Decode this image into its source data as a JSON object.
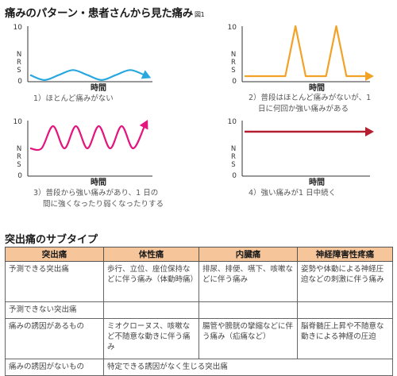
{
  "title": "痛みのパターン・患者さんから見た痛み",
  "figure_ref": "図1",
  "charts": [
    {
      "ymax_label": "10",
      "ymin_label": "0",
      "ylabel": "NRS",
      "xlabel": "時間",
      "line_color": "#29a7df",
      "caption_lines": [
        "1）ほとんど痛みがない"
      ]
    },
    {
      "ymax_label": "10",
      "ymin_label": "0",
      "ylabel": "NRS",
      "xlabel": "時間",
      "line_color": "#f2a227",
      "caption_lines": [
        "2）普段はほとんど痛みがないが、1",
        "日に何回か強い痛みがある"
      ]
    },
    {
      "ymax_label": "10",
      "ymin_label": "0",
      "ylabel": "NRS",
      "xlabel": "時間",
      "line_color": "#e4157e",
      "caption_lines": [
        "3）普段から強い痛みがあり、1 日の",
        "間に強くなったり弱くなったりする"
      ]
    },
    {
      "ymax_label": "10",
      "ymin_label": "0",
      "ylabel": "NRS",
      "xlabel": "時間",
      "line_color": "#b41e30",
      "caption_lines": [
        "4）強い痛みが1 日中続く"
      ]
    }
  ],
  "chart_data": [
    {
      "type": "line",
      "title": "",
      "xlabel": "時間",
      "ylabel": "NRS",
      "ylim": [
        0,
        10
      ],
      "y_ticks": [
        "0",
        "10"
      ],
      "series": [
        {
          "x": [
            0,
            1,
            2,
            3,
            4,
            5,
            6,
            7,
            8
          ],
          "y": [
            1.2,
            0.3,
            1.2,
            2.1,
            1.2,
            0.3,
            1.2,
            2.1,
            1.2
          ]
        }
      ]
    },
    {
      "type": "line",
      "title": "",
      "xlabel": "時間",
      "ylabel": "NRS",
      "ylim": [
        0,
        10
      ],
      "y_ticks": [
        "0",
        "10"
      ],
      "series": [
        {
          "x": [
            0,
            4,
            5,
            6,
            8,
            9,
            10,
            12
          ],
          "y": [
            1,
            1,
            10,
            1,
            1,
            10,
            1,
            1
          ]
        }
      ]
    },
    {
      "type": "line",
      "title": "",
      "xlabel": "時間",
      "ylabel": "NRS",
      "ylim": [
        0,
        10
      ],
      "y_ticks": [
        "0",
        "10"
      ],
      "series": [
        {
          "x": [
            0,
            1,
            2,
            3,
            4,
            5,
            6,
            7,
            8,
            9,
            10
          ],
          "y": [
            5,
            5,
            9,
            5,
            9,
            5,
            9,
            5,
            9,
            5,
            9
          ]
        }
      ]
    },
    {
      "type": "line",
      "title": "",
      "xlabel": "時間",
      "ylabel": "NRS",
      "ylim": [
        0,
        10
      ],
      "y_ticks": [
        "0",
        "10"
      ],
      "series": [
        {
          "x": [
            0,
            10
          ],
          "y": [
            8,
            8
          ]
        }
      ]
    }
  ],
  "subtypes": {
    "title": "突出痛のサブタイプ",
    "headers": [
      "突出痛",
      "体性痛",
      "内臓痛",
      "神経障害性疼痛"
    ],
    "rows": [
      [
        "予測できる突出痛",
        "歩行、立位、座位保持などに伴う痛み（体動時痛）",
        "排尿、排便、嚥下、咳嗽などに伴う痛み",
        "姿勢や体動による神経圧迫などの刺激に伴う痛み"
      ],
      [
        "予測できない突出痛",
        "",
        "",
        ""
      ],
      [
        "痛みの誘因があるもの",
        "ミオクローヌス、咳嗽など不随意な動きに伴う痛み",
        "腸管や膀胱の攣縮などに伴う痛み（疝痛など）",
        "脳脊髄圧上昇や不随意な動きによる神経の圧迫"
      ],
      [
        "痛みの誘因がないもの",
        "特定できる誘因がなく生じる突出痛",
        "",
        ""
      ]
    ]
  }
}
